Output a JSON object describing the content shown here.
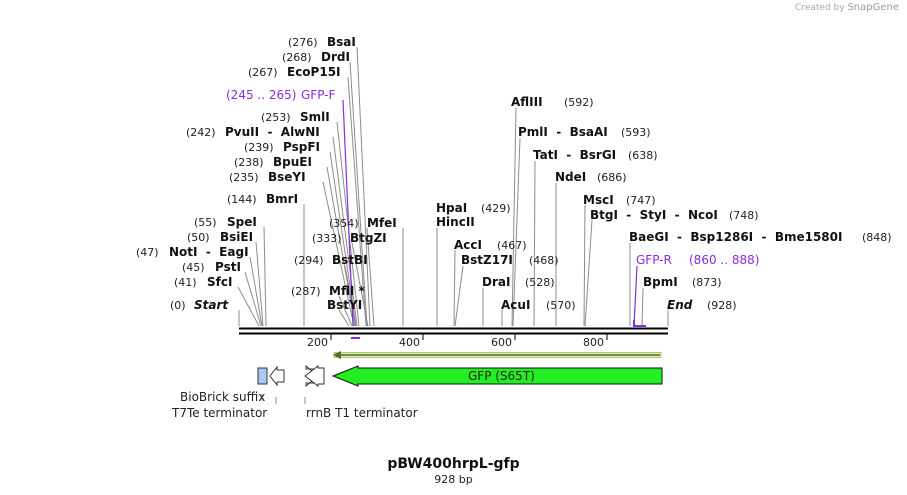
{
  "credit": {
    "prefix": "Created by",
    "brand": "SnapGene"
  },
  "map": {
    "name": "pBW400hrpL-gfp",
    "length_label": "928 bp",
    "length_bp": 928
  },
  "colors": {
    "primer": "#8a2be2",
    "gfp": "#22ee22",
    "biobrick": "#a8c8f0",
    "terminator": "#ffffff",
    "line": "#888888"
  },
  "ticks": [
    "200",
    "400",
    "600",
    "800"
  ],
  "sites": [
    {
      "pos": "(276)",
      "name": "BsaI"
    },
    {
      "pos": "(268)",
      "name": "DrdI"
    },
    {
      "pos": "(267)",
      "name": "EcoP15I"
    },
    {
      "pos": "(253)",
      "name": "SmlI"
    },
    {
      "pos": "(242)",
      "name": "PvuII  -  AlwNI"
    },
    {
      "pos": "(239)",
      "name": "PspFI"
    },
    {
      "pos": "(238)",
      "name": "BpuEI"
    },
    {
      "pos": "(235)",
      "name": "BseYI"
    },
    {
      "pos": "(144)",
      "name": "BmrI"
    },
    {
      "pos": "(55)",
      "name": "SpeI"
    },
    {
      "pos": "(50)",
      "name": "BsiEI"
    },
    {
      "pos": "(47)",
      "name": "NotI  -  EagI"
    },
    {
      "pos": "(45)",
      "name": "PstI"
    },
    {
      "pos": "(41)",
      "name": "SfcI"
    },
    {
      "pos": "(0)",
      "name": "Start"
    },
    {
      "pos": "(354)",
      "name": "MfeI"
    },
    {
      "pos": "(333)",
      "name": "BtgZI"
    },
    {
      "pos": "(294)",
      "name": "BstBI"
    },
    {
      "pos": "(287)",
      "name": "MflI *"
    },
    {
      "pos": "",
      "name": "BstYI"
    },
    {
      "pos": "(429)",
      "name": "HpaI"
    },
    {
      "pos": "",
      "name": "HincII"
    },
    {
      "pos": "(467)",
      "name": "AccI"
    },
    {
      "pos": "(468)",
      "name": "BstZ17I"
    },
    {
      "pos": "(528)",
      "name": "DraI"
    },
    {
      "pos": "(570)",
      "name": "AcuI"
    },
    {
      "pos": "(592)",
      "name": "AflIII"
    },
    {
      "pos": "(593)",
      "name": "PmlI  -  BsaAI"
    },
    {
      "pos": "(638)",
      "name": "TatI  -  BsrGI"
    },
    {
      "pos": "(686)",
      "name": "NdeI"
    },
    {
      "pos": "(747)",
      "name": "MscI"
    },
    {
      "pos": "(748)",
      "name": "BtgI  -  StyI  -  NcoI"
    },
    {
      "pos": "(848)",
      "name": "BaeGI  -  Bsp1286I  -  Bme1580I"
    },
    {
      "pos": "(873)",
      "name": "BpmI"
    },
    {
      "pos": "(928)",
      "name": "End"
    }
  ],
  "primers": [
    {
      "range": "(245 .. 265)",
      "name": "GFP-F"
    },
    {
      "range": "(860 .. 888)",
      "name": "GFP-R"
    }
  ],
  "features": {
    "gfp": "GFP (S65T)",
    "biobrick": "BioBrick suffix",
    "t7te": "T7Te terminator",
    "rrnb": "rrnB T1 terminator"
  }
}
